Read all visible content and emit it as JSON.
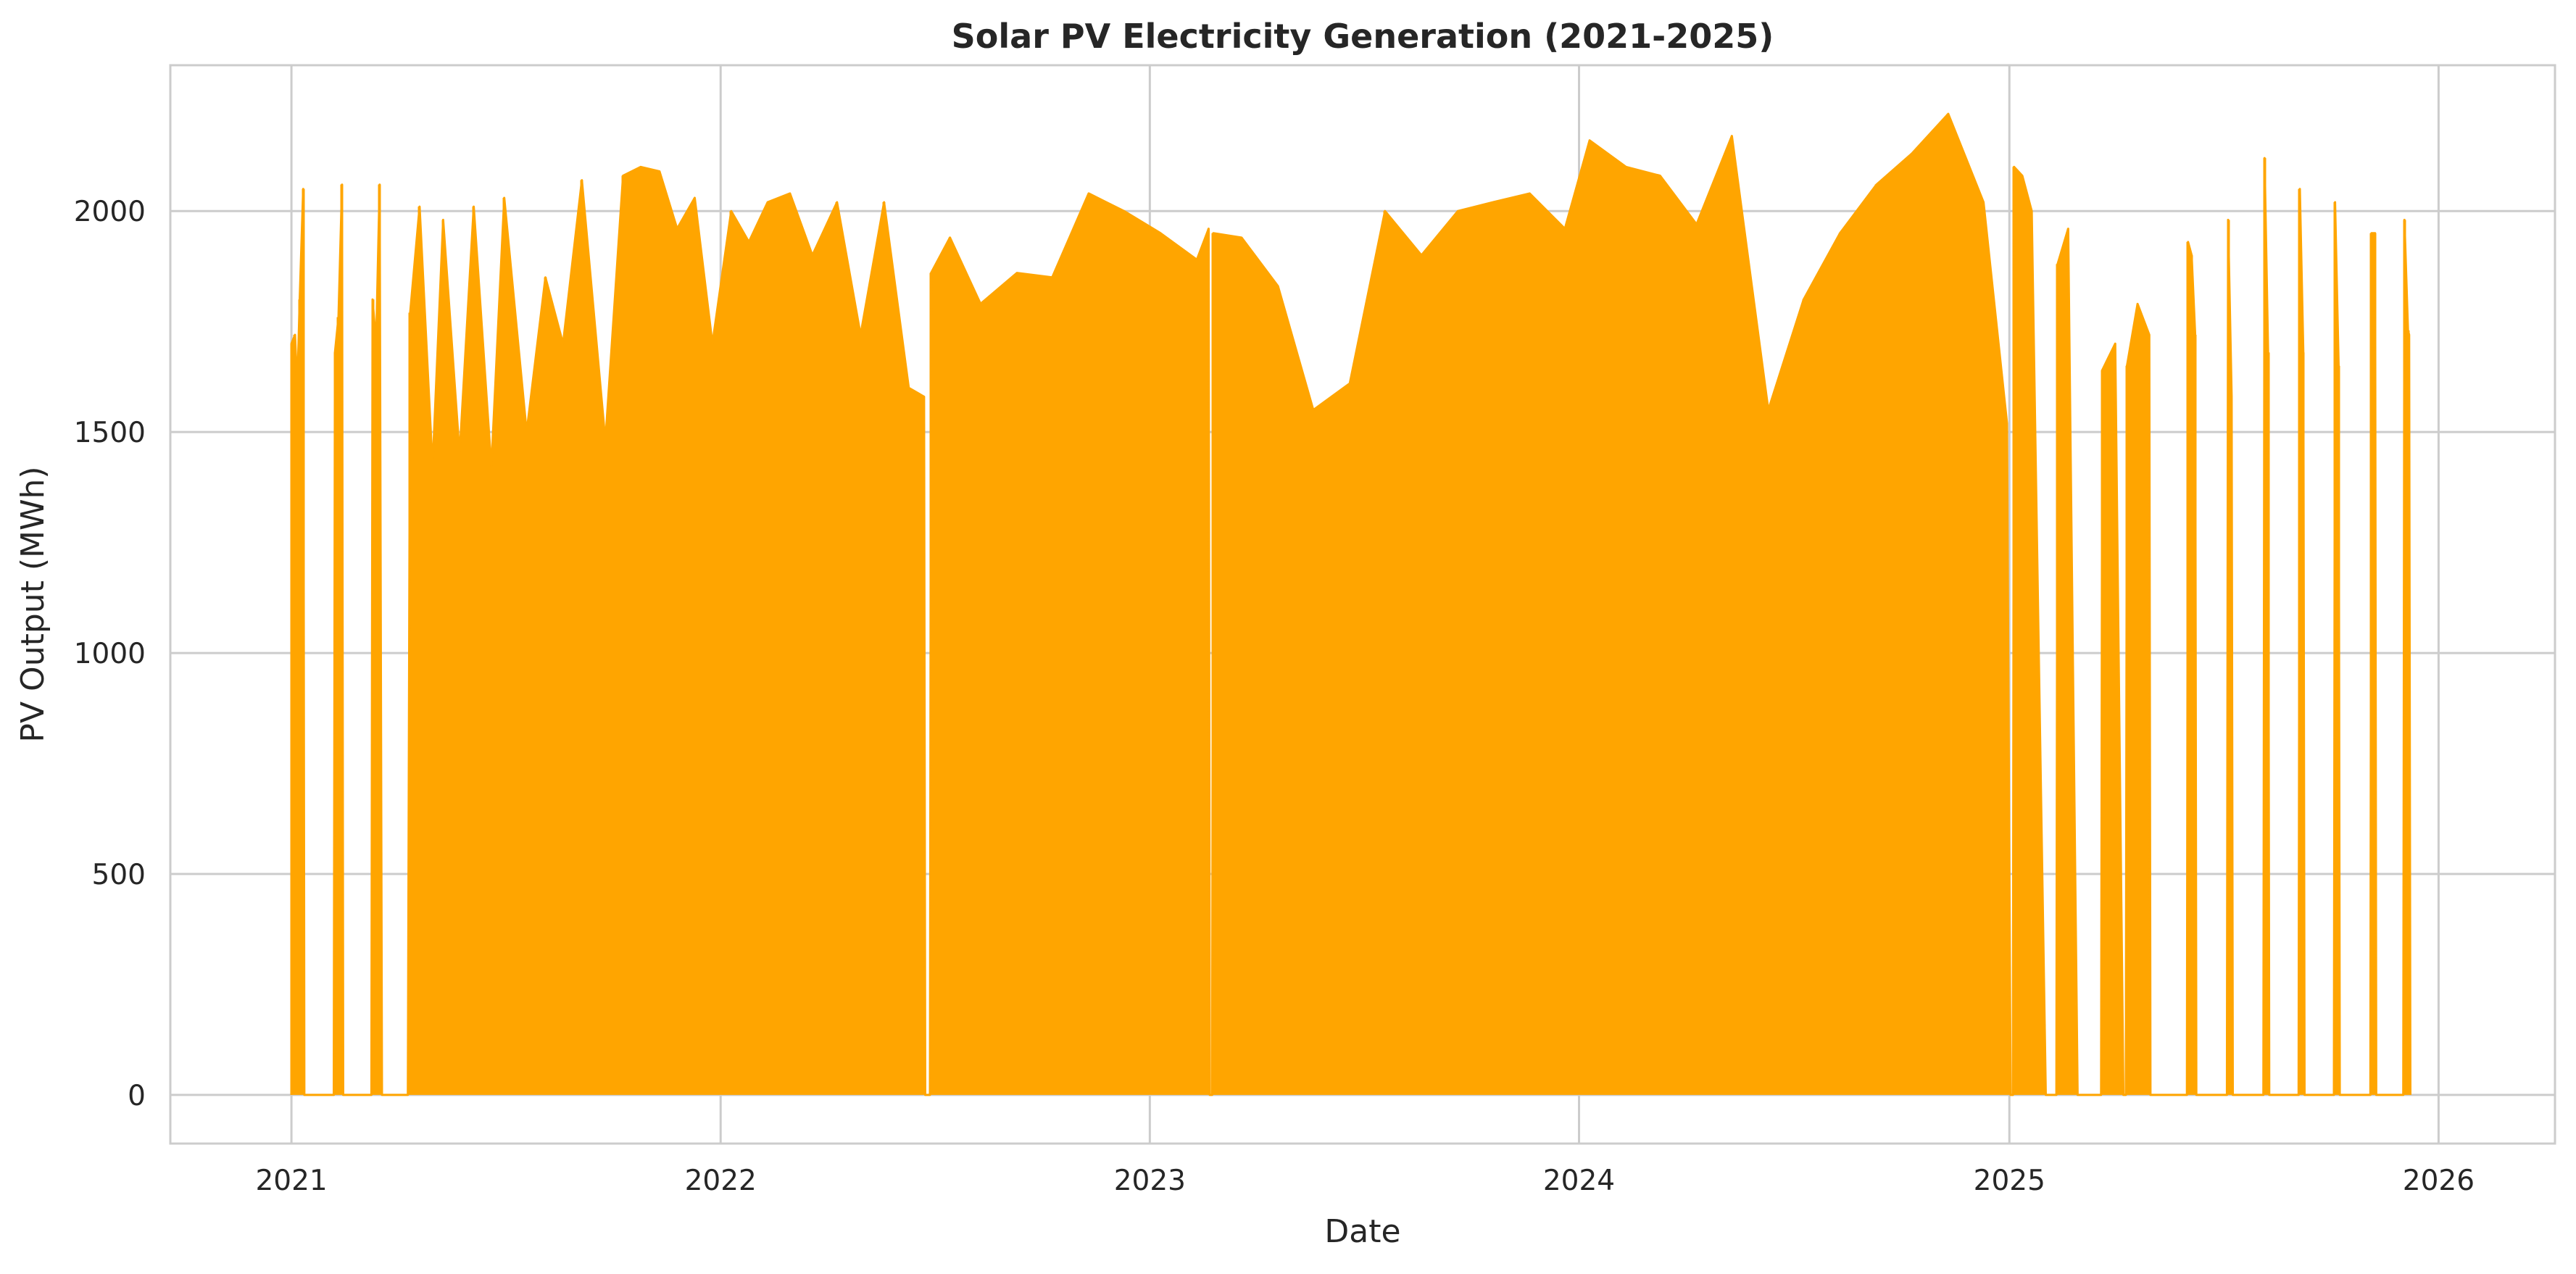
{
  "chart_data": {
    "type": "line",
    "title": "Solar PV Electricity Generation (2021-2025)",
    "xlabel": "Date",
    "ylabel": "PV Output (MWh)",
    "xlim": [
      "2020-09-20",
      "2026-04-10"
    ],
    "ylim": [
      -110,
      2330
    ],
    "x_ticks": [
      "2021",
      "2022",
      "2023",
      "2024",
      "2025",
      "2026"
    ],
    "y_ticks": [
      0,
      500,
      1000,
      1500,
      2000
    ],
    "grid": true,
    "legend": "none",
    "line_color": "#ffa500",
    "series": [
      {
        "points": [
          [
            "2021-01-01",
            0
          ],
          [
            "2021-01-01",
            1700
          ],
          [
            "2021-01-04",
            1720
          ],
          [
            "2021-01-06",
            1600
          ],
          [
            "2021-01-08",
            1800
          ],
          [
            "2021-01-11",
            2050
          ],
          [
            "2021-01-12",
            0
          ],
          [
            "2021-02-06",
            0
          ],
          [
            "2021-02-07",
            1680
          ],
          [
            "2021-02-10",
            1760
          ],
          [
            "2021-02-13",
            2060
          ],
          [
            "2021-02-14",
            0
          ],
          [
            "2021-03-10",
            0
          ],
          [
            "2021-03-11",
            1800
          ],
          [
            "2021-03-14",
            1700
          ],
          [
            "2021-03-17",
            2060
          ],
          [
            "2021-03-19",
            0
          ],
          [
            "2021-04-10",
            0
          ],
          [
            "2021-04-12",
            1770
          ],
          [
            "2021-04-20",
            2010
          ],
          [
            "2021-05-01",
            1420
          ],
          [
            "2021-05-10",
            1980
          ],
          [
            "2021-05-24",
            1450
          ],
          [
            "2021-06-05",
            2010
          ],
          [
            "2021-06-20",
            1420
          ],
          [
            "2021-07-01",
            2030
          ],
          [
            "2021-07-20",
            1500
          ],
          [
            "2021-08-05",
            1850
          ],
          [
            "2021-08-20",
            1700
          ],
          [
            "2021-09-05",
            2070
          ],
          [
            "2021-09-25",
            1480
          ],
          [
            "2021-10-10",
            2080
          ],
          [
            "2021-10-25",
            2100
          ],
          [
            "2021-11-10",
            2090
          ],
          [
            "2021-11-25",
            1960
          ],
          [
            "2021-12-10",
            2030
          ],
          [
            "2021-12-25",
            1700
          ],
          [
            "2022-01-10",
            2000
          ],
          [
            "2022-01-25",
            1930
          ],
          [
            "2022-02-10",
            2020
          ],
          [
            "2022-03-01",
            2040
          ],
          [
            "2022-03-20",
            1900
          ],
          [
            "2022-04-10",
            2020
          ],
          [
            "2022-04-30",
            1720
          ],
          [
            "2022-05-20",
            2020
          ],
          [
            "2022-06-10",
            1600
          ],
          [
            "2022-06-23",
            1580
          ],
          [
            "2022-06-24",
            0
          ],
          [
            "2022-06-28",
            0
          ],
          [
            "2022-06-29",
            1860
          ],
          [
            "2022-07-15",
            1940
          ],
          [
            "2022-08-10",
            1790
          ],
          [
            "2022-09-10",
            1860
          ],
          [
            "2022-10-10",
            1850
          ],
          [
            "2022-11-10",
            2040
          ],
          [
            "2022-12-10",
            2000
          ],
          [
            "2023-01-10",
            1950
          ],
          [
            "2023-02-10",
            1890
          ],
          [
            "2023-02-20",
            1960
          ],
          [
            "2023-02-21",
            0
          ],
          [
            "2023-02-23",
            0
          ],
          [
            "2023-02-24",
            1950
          ],
          [
            "2023-03-20",
            1940
          ],
          [
            "2023-04-20",
            1830
          ],
          [
            "2023-05-20",
            1550
          ],
          [
            "2023-06-20",
            1610
          ],
          [
            "2023-07-20",
            2000
          ],
          [
            "2023-08-20",
            1900
          ],
          [
            "2023-09-20",
            2000
          ],
          [
            "2023-10-20",
            2020
          ],
          [
            "2023-11-20",
            2040
          ],
          [
            "2023-12-20",
            1960
          ],
          [
            "2024-01-10",
            2160
          ],
          [
            "2024-02-10",
            2100
          ],
          [
            "2024-03-10",
            2080
          ],
          [
            "2024-04-10",
            1970
          ],
          [
            "2024-05-10",
            2170
          ],
          [
            "2024-06-10",
            1550
          ],
          [
            "2024-07-10",
            1800
          ],
          [
            "2024-08-10",
            1950
          ],
          [
            "2024-09-10",
            2060
          ],
          [
            "2024-10-10",
            2130
          ],
          [
            "2024-11-10",
            2220
          ],
          [
            "2024-12-10",
            2020
          ],
          [
            "2024-12-30",
            1520
          ],
          [
            "2025-01-02",
            0
          ],
          [
            "2025-01-04",
            0
          ],
          [
            "2025-01-05",
            2100
          ],
          [
            "2025-01-12",
            2080
          ],
          [
            "2025-01-20",
            2000
          ],
          [
            "2025-02-01",
            0
          ],
          [
            "2025-02-10",
            0
          ],
          [
            "2025-02-11",
            1880
          ],
          [
            "2025-02-20",
            1960
          ],
          [
            "2025-02-28",
            0
          ],
          [
            "2025-03-20",
            0
          ],
          [
            "2025-03-21",
            1640
          ],
          [
            "2025-04-01",
            1700
          ],
          [
            "2025-04-08",
            0
          ],
          [
            "2025-04-10",
            0
          ],
          [
            "2025-04-11",
            1650
          ],
          [
            "2025-04-20",
            1790
          ],
          [
            "2025-04-30",
            1720
          ],
          [
            "2025-05-01",
            0
          ],
          [
            "2025-06-01",
            0
          ],
          [
            "2025-06-02",
            1930
          ],
          [
            "2025-06-05",
            1900
          ],
          [
            "2025-06-08",
            1720
          ],
          [
            "2025-06-09",
            0
          ],
          [
            "2025-07-05",
            0
          ],
          [
            "2025-07-06",
            1980
          ],
          [
            "2025-07-09",
            1580
          ],
          [
            "2025-07-10",
            0
          ],
          [
            "2025-08-05",
            0
          ],
          [
            "2025-08-06",
            2120
          ],
          [
            "2025-08-09",
            1680
          ],
          [
            "2025-08-10",
            0
          ],
          [
            "2025-09-04",
            0
          ],
          [
            "2025-09-05",
            2050
          ],
          [
            "2025-09-08",
            1680
          ],
          [
            "2025-09-09",
            0
          ],
          [
            "2025-10-04",
            0
          ],
          [
            "2025-10-05",
            2020
          ],
          [
            "2025-10-08",
            1650
          ],
          [
            "2025-10-09",
            0
          ],
          [
            "2025-11-04",
            0
          ],
          [
            "2025-11-05",
            1950
          ],
          [
            "2025-11-08",
            1950
          ],
          [
            "2025-11-09",
            0
          ],
          [
            "2025-12-02",
            0
          ],
          [
            "2025-12-03",
            1980
          ],
          [
            "2025-12-06",
            1730
          ],
          [
            "2025-12-07",
            1720
          ],
          [
            "2025-12-08",
            0
          ]
        ]
      }
    ]
  }
}
